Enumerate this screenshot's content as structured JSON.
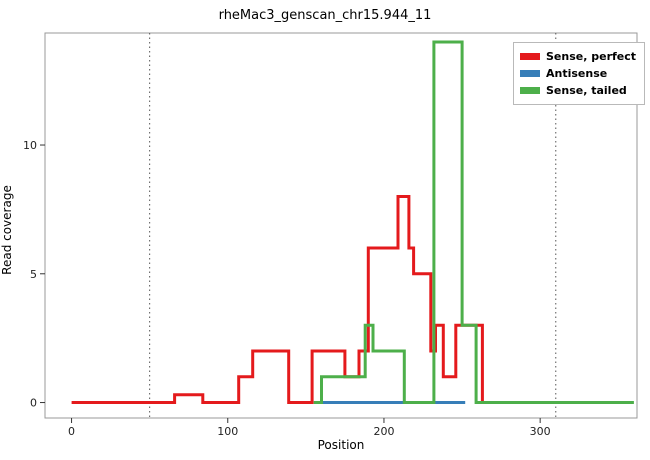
{
  "chart_data": {
    "type": "line",
    "title": "rheMac3_genscan_chr15.944_11",
    "xlabel": "Position",
    "ylabel": "Read coverage",
    "xlim": [
      -17,
      362
    ],
    "ylim": [
      -0.6,
      14.35
    ],
    "x_ticks": [
      0,
      100,
      200,
      300
    ],
    "y_ticks": [
      0,
      5,
      10
    ],
    "grid": false,
    "legend_position": "top-right-inside",
    "vlines": {
      "positions": [
        50,
        310
      ],
      "style": "dotted",
      "color": "#555555"
    },
    "series": [
      {
        "name": "Sense, perfect",
        "color": "#E41A1C",
        "points": [
          [
            0,
            0
          ],
          [
            66,
            0
          ],
          [
            66,
            0.3
          ],
          [
            84,
            0.3
          ],
          [
            84,
            0
          ],
          [
            107,
            0
          ],
          [
            107,
            1
          ],
          [
            116,
            1
          ],
          [
            116,
            2
          ],
          [
            139,
            2
          ],
          [
            139,
            0
          ],
          [
            154,
            0
          ],
          [
            154,
            2
          ],
          [
            175,
            2
          ],
          [
            175,
            1
          ],
          [
            184,
            1
          ],
          [
            184,
            2
          ],
          [
            190,
            2
          ],
          [
            190,
            6
          ],
          [
            209,
            6
          ],
          [
            209,
            8
          ],
          [
            216,
            8
          ],
          [
            216,
            6
          ],
          [
            219,
            6
          ],
          [
            219,
            5
          ],
          [
            230,
            5
          ],
          [
            230,
            2
          ],
          [
            233,
            2
          ],
          [
            233,
            3
          ],
          [
            238,
            3
          ],
          [
            238,
            1
          ],
          [
            246,
            1
          ],
          [
            246,
            3
          ],
          [
            263,
            3
          ],
          [
            263,
            0
          ],
          [
            270,
            0
          ]
        ]
      },
      {
        "name": "Antisense",
        "color": "#377EB8",
        "points": [
          [
            160,
            0
          ],
          [
            252,
            0
          ]
        ]
      },
      {
        "name": "Sense, tailed",
        "color": "#4DAF4A",
        "points": [
          [
            155,
            0
          ],
          [
            160,
            0
          ],
          [
            160,
            1
          ],
          [
            188,
            1
          ],
          [
            188,
            3
          ],
          [
            193,
            3
          ],
          [
            193,
            2
          ],
          [
            213,
            2
          ],
          [
            213,
            0
          ],
          [
            232,
            0
          ],
          [
            232,
            14
          ],
          [
            250,
            14
          ],
          [
            250,
            3
          ],
          [
            259,
            3
          ],
          [
            259,
            0
          ],
          [
            360,
            0
          ]
        ]
      }
    ],
    "legend": {
      "items": [
        {
          "label": "Sense, perfect",
          "color": "#E41A1C"
        },
        {
          "label": "Antisense",
          "color": "#377EB8"
        },
        {
          "label": "Sense, tailed",
          "color": "#4DAF4A"
        }
      ]
    }
  }
}
